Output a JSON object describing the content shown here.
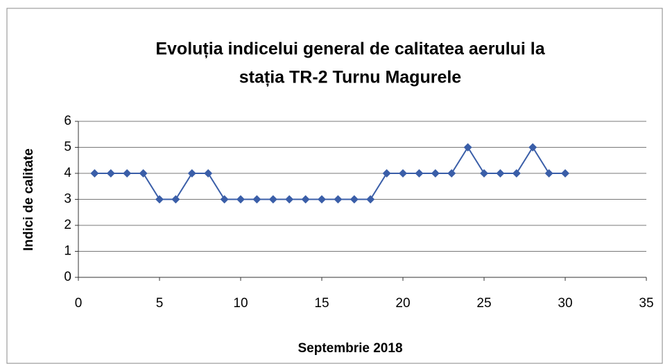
{
  "chart_data": {
    "type": "line",
    "title": [
      "Evoluția indicelui general de calitatea aerului la",
      "stația TR-2 Turnu Magurele"
    ],
    "x_label": "Septembrie 2018",
    "y_label": "Indici de calitate",
    "x": [
      1,
      2,
      3,
      4,
      5,
      6,
      7,
      8,
      9,
      10,
      11,
      12,
      13,
      14,
      15,
      16,
      17,
      18,
      19,
      20,
      21,
      22,
      23,
      24,
      25,
      26,
      27,
      28,
      29,
      30
    ],
    "series": [
      {
        "color": "#3a5ea8",
        "values": [
          4,
          4,
          4,
          4,
          3,
          3,
          4,
          4,
          3,
          3,
          3,
          3,
          3,
          3,
          3,
          3,
          3,
          3,
          4,
          4,
          4,
          4,
          4,
          5,
          4,
          4,
          4,
          5,
          4,
          4
        ]
      }
    ],
    "xlim": [
      0,
      35
    ],
    "xticks": [
      0,
      5,
      10,
      15,
      20,
      25,
      30,
      35
    ],
    "ylim": [
      0,
      6
    ],
    "yticks": [
      0,
      1,
      2,
      3,
      4,
      5,
      6
    ],
    "grid": true
  }
}
